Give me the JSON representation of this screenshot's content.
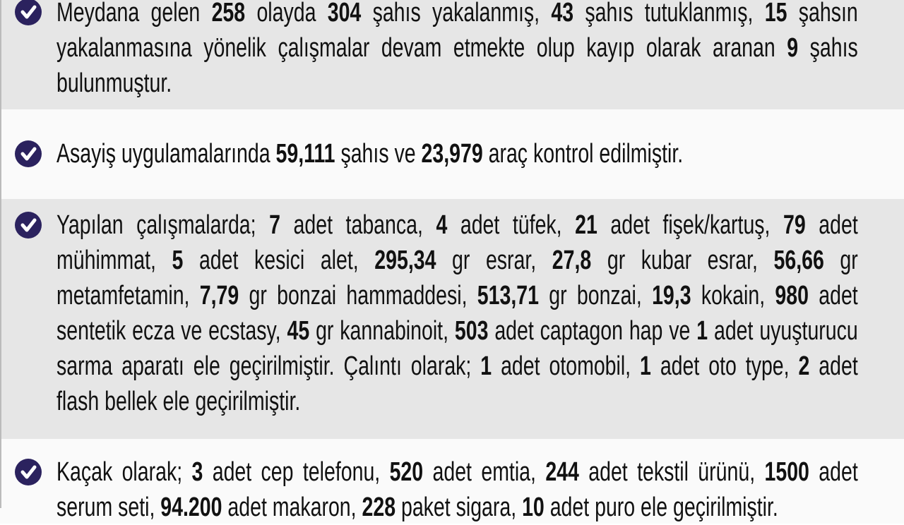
{
  "colors": {
    "bullet": "#2b225e",
    "band_gray": "#e6e6e6",
    "band_white": "#fafafa"
  },
  "bullet_icon": "check-circle-icon",
  "sections": [
    {
      "lines": [
        [
          {
            "t": "Meydana gelen "
          },
          {
            "t": "258",
            "b": true
          },
          {
            "t": " olayda "
          },
          {
            "t": "304",
            "b": true
          },
          {
            "t": " şahıs yakalanmış, "
          },
          {
            "t": "43",
            "b": true
          },
          {
            "t": " şahıs tutuklanmış, "
          },
          {
            "t": "15",
            "b": true
          },
          {
            "t": " şahsın"
          }
        ],
        [
          {
            "t": "yakalanmasına yönelik çalışmalar devam etmekte olup kayıp olarak aranan "
          },
          {
            "t": "9",
            "b": true
          },
          {
            "t": " şahıs"
          }
        ],
        [
          {
            "t": "bulunmuştur."
          }
        ]
      ]
    },
    {
      "lines": [
        [
          {
            "t": "Asayiş uygulamalarında "
          },
          {
            "t": "59,111",
            "b": true
          },
          {
            "t": " şahıs ve "
          },
          {
            "t": "23,979",
            "b": true
          },
          {
            "t": " araç kontrol edilmiştir."
          }
        ]
      ]
    },
    {
      "lines": [
        [
          {
            "t": "Yapılan çalışmalarda; "
          },
          {
            "t": "7",
            "b": true
          },
          {
            "t": " adet tabanca, "
          },
          {
            "t": "4",
            "b": true
          },
          {
            "t": " adet tüfek, "
          },
          {
            "t": "21",
            "b": true
          },
          {
            "t": " adet fişek/kartuş, "
          },
          {
            "t": "79",
            "b": true
          },
          {
            "t": " adet"
          }
        ],
        [
          {
            "t": "mühimmat, "
          },
          {
            "t": "5",
            "b": true
          },
          {
            "t": " adet kesici alet, "
          },
          {
            "t": "295,34",
            "b": true
          },
          {
            "t": " gr esrar, "
          },
          {
            "t": "27,8",
            "b": true
          },
          {
            "t": " gr kubar esrar, "
          },
          {
            "t": "56,66",
            "b": true
          },
          {
            "t": " gr"
          }
        ],
        [
          {
            "t": "metamfetamin, "
          },
          {
            "t": "7,79",
            "b": true
          },
          {
            "t": " gr bonzai hammaddesi,  "
          },
          {
            "t": "513,71",
            "b": true
          },
          {
            "t": " gr bonzai, "
          },
          {
            "t": "19,3",
            "b": true
          },
          {
            "t": " kokain, "
          },
          {
            "t": "980",
            "b": true
          },
          {
            "t": " adet"
          }
        ],
        [
          {
            "t": "sentetik ecza ve ecstasy, "
          },
          {
            "t": "45",
            "b": true
          },
          {
            "t": " gr kannabinoit, "
          },
          {
            "t": "503",
            "b": true
          },
          {
            "t": " adet captagon hap ve "
          },
          {
            "t": "1",
            "b": true
          },
          {
            "t": " adet uyuşturucu"
          }
        ],
        [
          {
            "t": "sarma aparatı ele geçirilmiştir. Çalıntı olarak; "
          },
          {
            "t": "1",
            "b": true
          },
          {
            "t": " adet otomobil, "
          },
          {
            "t": "1",
            "b": true
          },
          {
            "t": " adet oto type, "
          },
          {
            "t": "2",
            "b": true
          },
          {
            "t": " adet"
          }
        ],
        [
          {
            "t": "flash bellek ele geçirilmiştir."
          }
        ]
      ]
    },
    {
      "lines": [
        [
          {
            "t": "Kaçak olarak; "
          },
          {
            "t": "3",
            "b": true
          },
          {
            "t": " adet cep telefonu, "
          },
          {
            "t": "520",
            "b": true
          },
          {
            "t": " adet emtia, "
          },
          {
            "t": "244",
            "b": true
          },
          {
            "t": " adet tekstil ürünü, "
          },
          {
            "t": "1500",
            "b": true
          },
          {
            "t": " adet"
          }
        ],
        [
          {
            "t": "serum seti, "
          },
          {
            "t": "94.200",
            "b": true
          },
          {
            "t": " adet makaron, "
          },
          {
            "t": "228",
            "b": true
          },
          {
            "t": " paket sigara, "
          },
          {
            "t": "10",
            "b": true
          },
          {
            "t": " adet puro ele geçirilmiştir."
          }
        ]
      ]
    }
  ]
}
